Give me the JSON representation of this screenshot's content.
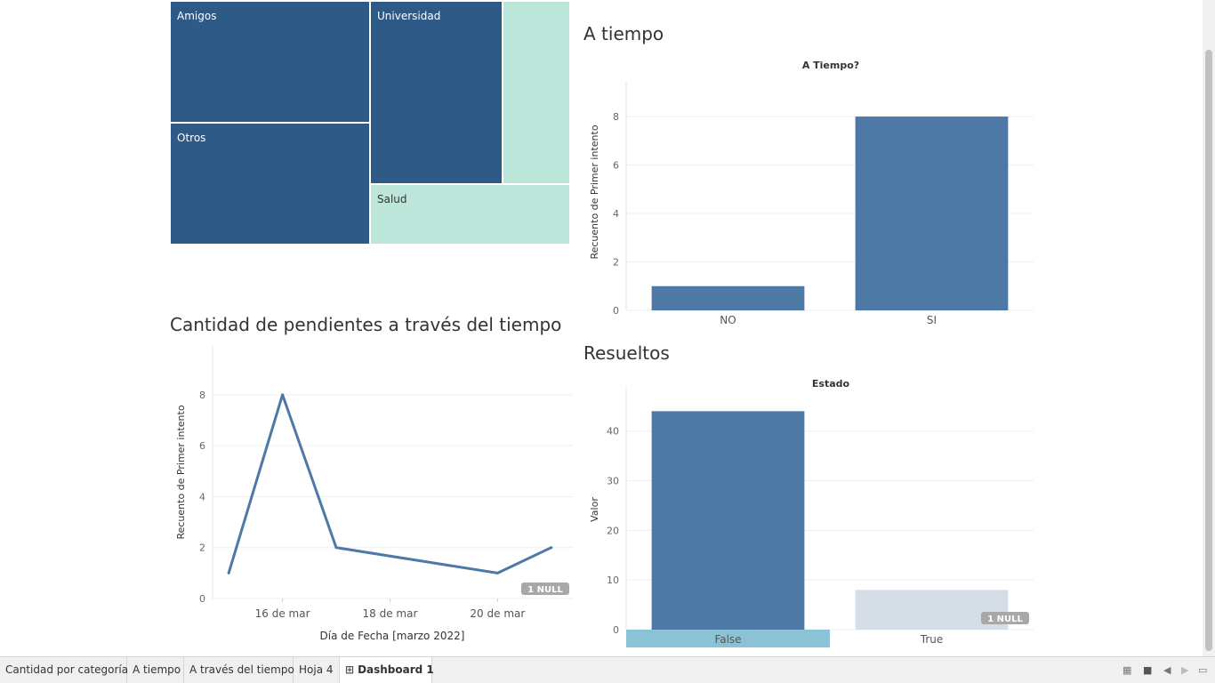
{
  "treemap": {
    "cells": [
      {
        "label": "Amigos",
        "color": "#2e5a87"
      },
      {
        "label": "Otros",
        "color": "#2e5a87"
      },
      {
        "label": "Universidad",
        "color": "#2e5a87"
      },
      {
        "label": "",
        "color": "#bde6da"
      },
      {
        "label": "Salud",
        "color": "#bde6da"
      }
    ]
  },
  "titles": {
    "a_tiempo": "A tiempo",
    "cantidad": "Cantidad de pendientes a través del tiempo",
    "resueltos": "Resueltos"
  },
  "chart_data": [
    {
      "type": "bar",
      "title": "A Tiempo?",
      "categories": [
        "NO",
        "SI"
      ],
      "values": [
        1,
        8
      ],
      "ylabel": "Recuento de Primer intento",
      "xlabel": "",
      "ylim": [
        0,
        8.7
      ],
      "yticks": [
        "0",
        "2",
        "4",
        "6",
        "8"
      ],
      "color": "#4e79a7",
      "grid": true
    },
    {
      "type": "line",
      "title": "",
      "x": [
        "15 de mar",
        "16 de mar",
        "17 de mar",
        "18 de mar",
        "19 de mar",
        "20 de mar",
        "21 de mar"
      ],
      "values": [
        1,
        8,
        2,
        null,
        null,
        1,
        2
      ],
      "line_points": [
        {
          "day": 15,
          "value": 1
        },
        {
          "day": 16,
          "value": 8
        },
        {
          "day": 17,
          "value": 2
        },
        {
          "day": 20,
          "value": 1
        },
        {
          "day": 21,
          "value": 2
        }
      ],
      "xticks": [
        {
          "day": 16,
          "label": "16 de mar"
        },
        {
          "day": 18,
          "label": "18 de mar"
        },
        {
          "day": 20,
          "label": "20 de mar"
        }
      ],
      "xlim": [
        14.7,
        21.4
      ],
      "ylim": [
        0,
        8.8
      ],
      "yticks": [
        "0",
        "2",
        "4",
        "6",
        "8"
      ],
      "xlabel": "Día de Fecha [marzo 2022]",
      "ylabel": "Recuento de Primer intento",
      "null_badge": "1 NULL",
      "color": "#4e79a7",
      "grid": true
    },
    {
      "type": "bar",
      "title": "Estado",
      "categories": [
        "False",
        "True"
      ],
      "values": [
        44,
        8
      ],
      "colors": [
        "#4e79a7",
        "#d5dde6"
      ],
      "highlight_category": "False",
      "highlight_color": "#8ac3d5",
      "ylabel": "Valor",
      "xlabel": "",
      "ylim": [
        0,
        45.5
      ],
      "yticks": [
        "0",
        "10",
        "20",
        "30",
        "40"
      ],
      "null_badge": "1 NULL",
      "grid": true
    }
  ],
  "tabs": [
    {
      "label": "Cantidad por categoría"
    },
    {
      "label": "A tiempo"
    },
    {
      "label": "A través del tiempo"
    },
    {
      "label": "Hoja 4"
    },
    {
      "label": "Dashboard 1",
      "active": true
    }
  ],
  "icons": {
    "dashboard_tab": "dashboard-grid-icon",
    "nav": [
      "grid-view-icon",
      "filmstrip-icon",
      "previous-sheet-icon",
      "next-sheet-icon",
      "presentation-mode-icon"
    ]
  }
}
